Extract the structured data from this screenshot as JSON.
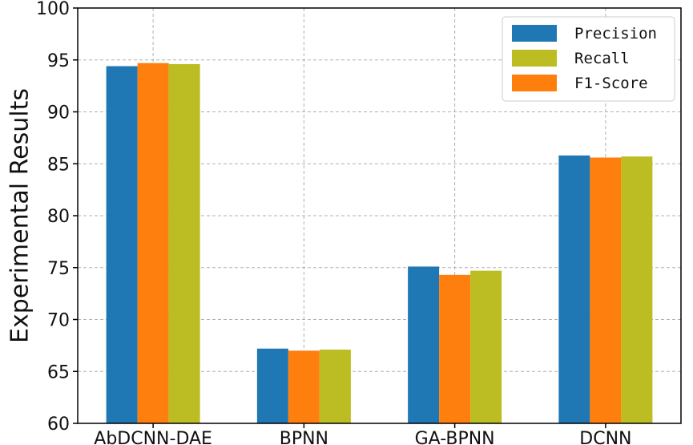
{
  "chart_data": {
    "type": "bar",
    "title": "",
    "xlabel": "",
    "ylabel": "Experimental Results",
    "ylim": [
      60,
      100
    ],
    "yticks": [
      60,
      65,
      70,
      75,
      80,
      85,
      90,
      95,
      100
    ],
    "grid": true,
    "legend_position": "top-right",
    "categories": [
      "AbDCNN-DAE",
      "BPNN",
      "GA-BPNN",
      "DCNN"
    ],
    "series": [
      {
        "name": "Precision",
        "color": "#1f77b4",
        "values": [
          94.4,
          67.2,
          75.1,
          85.8
        ]
      },
      {
        "name": "Recall",
        "color": "#bcbd22",
        "values": [
          94.6,
          67.1,
          74.7,
          85.7
        ]
      },
      {
        "name": "F1-Score",
        "color": "#ff7f0e",
        "values": [
          94.7,
          67.0,
          74.3,
          85.6
        ]
      }
    ],
    "bar_order": [
      "Precision",
      "F1-Score",
      "Recall"
    ]
  }
}
